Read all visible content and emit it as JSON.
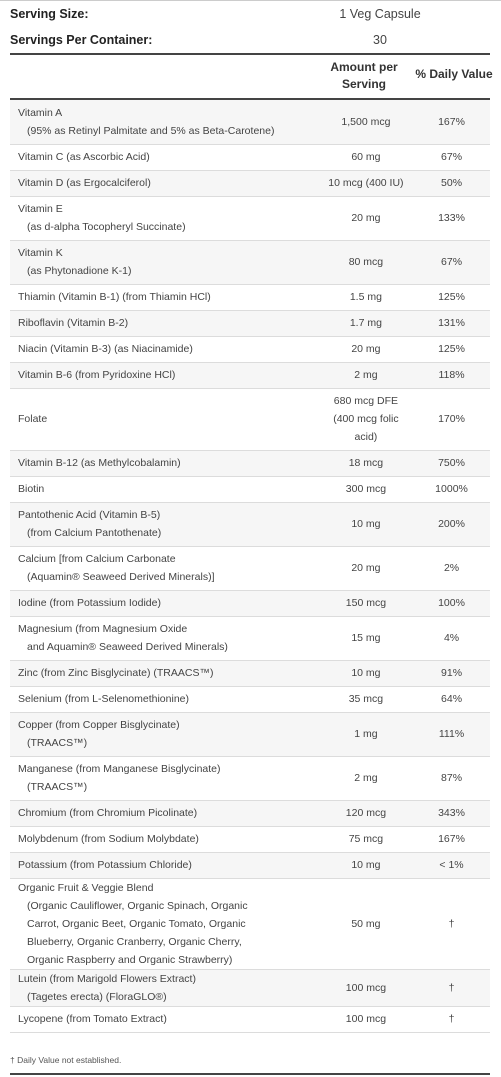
{
  "serving": {
    "size_label": "Serving Size:",
    "size_value": "1 Veg Capsule",
    "per_container_label": "Servings Per Container:",
    "per_container_value": "30"
  },
  "header": {
    "amount_line1": "Amount per",
    "amount_line2": "Serving",
    "daily_value": "% Daily Value"
  },
  "rows": [
    {
      "name": "Vitamin A",
      "sub": "(95% as Retinyl Palmitate and 5% as Beta-Carotene)",
      "amount": "1,500 mcg",
      "dv": "167%"
    },
    {
      "name": "Vitamin C (as Ascorbic Acid)",
      "sub": "",
      "amount": "60 mg",
      "dv": "67%"
    },
    {
      "name": "Vitamin D (as Ergocalciferol)",
      "sub": "",
      "amount": "10 mcg (400 IU)",
      "dv": "50%"
    },
    {
      "name": "Vitamin E",
      "sub": "(as d-alpha Tocopheryl Succinate)",
      "amount": "20 mg",
      "dv": "133%"
    },
    {
      "name": "Vitamin K",
      "sub": "(as Phytonadione K-1)",
      "amount": "80 mcg",
      "dv": "67%"
    },
    {
      "name": "Thiamin (Vitamin B-1) (from Thiamin HCl)",
      "sub": "",
      "amount": "1.5 mg",
      "dv": "125%"
    },
    {
      "name": "Riboflavin (Vitamin B-2)",
      "sub": "",
      "amount": "1.7 mg",
      "dv": "131%"
    },
    {
      "name": "Niacin (Vitamin B-3) (as Niacinamide)",
      "sub": "",
      "amount": "20 mg",
      "dv": "125%"
    },
    {
      "name": "Vitamin B-6 (from Pyridoxine HCl)",
      "sub": "",
      "amount": "2 mg",
      "dv": "118%"
    },
    {
      "name": "Folate",
      "sub": "",
      "amount": "680 mcg DFE\n(400 mcg folic\nacid)",
      "dv": "170%"
    },
    {
      "name": "Vitamin B-12 (as Methylcobalamin)",
      "sub": "",
      "amount": "18 mcg",
      "dv": "750%"
    },
    {
      "name": "Biotin",
      "sub": "",
      "amount": "300 mcg",
      "dv": "1000%"
    },
    {
      "name": "Pantothenic Acid (Vitamin B-5)",
      "sub": "(from Calcium Pantothenate)",
      "amount": "10 mg",
      "dv": "200%"
    },
    {
      "name": "Calcium [from Calcium Carbonate",
      "sub": "(Aquamin® Seaweed Derived Minerals)]",
      "amount": "20 mg",
      "dv": "2%"
    },
    {
      "name": "Iodine (from Potassium Iodide)",
      "sub": "",
      "amount": "150 mcg",
      "dv": "100%"
    },
    {
      "name": "Magnesium (from Magnesium Oxide",
      "sub": "and Aquamin® Seaweed Derived Minerals)",
      "amount": "15 mg",
      "dv": "4%"
    },
    {
      "name": "Zinc (from Zinc Bisglycinate) (TRAACS™)",
      "sub": "",
      "amount": "10 mg",
      "dv": "91%"
    },
    {
      "name": "Selenium (from L-Selenomethionine)",
      "sub": "",
      "amount": "35 mcg",
      "dv": "64%"
    },
    {
      "name": "Copper (from Copper Bisglycinate)",
      "sub": "(TRAACS™)",
      "amount": "1 mg",
      "dv": "111%"
    },
    {
      "name": "Manganese (from Manganese Bisglycinate)",
      "sub": "(TRAACS™)",
      "amount": "2 mg",
      "dv": "87%"
    },
    {
      "name": "Chromium (from Chromium Picolinate)",
      "sub": "",
      "amount": "120 mcg",
      "dv": "343%"
    },
    {
      "name": "Molybdenum (from Sodium Molybdate)",
      "sub": "",
      "amount": "75 mcg",
      "dv": "167%"
    },
    {
      "name": "Potassium (from Potassium Chloride)",
      "sub": "",
      "amount": "10 mg",
      "dv": "< 1%"
    },
    {
      "name": "Organic Fruit & Veggie Blend",
      "sub": "(Organic Cauliflower, Organic Spinach, Organic\nCarrot, Organic Beet, Organic Tomato, Organic\nBlueberry, Organic Cranberry, Organic Cherry,\nOrganic Raspberry and Organic Strawberry)",
      "amount": "50 mg",
      "dv": "†"
    },
    {
      "name": "Lutein (from Marigold Flowers Extract)",
      "sub": "(Tagetes erecta) (FloraGLO®)",
      "amount": "100 mcg",
      "dv": "†"
    },
    {
      "name": "Lycopene (from Tomato Extract)",
      "sub": "",
      "amount": "100 mcg",
      "dv": "†"
    }
  ],
  "footnote": "† Daily Value not established."
}
